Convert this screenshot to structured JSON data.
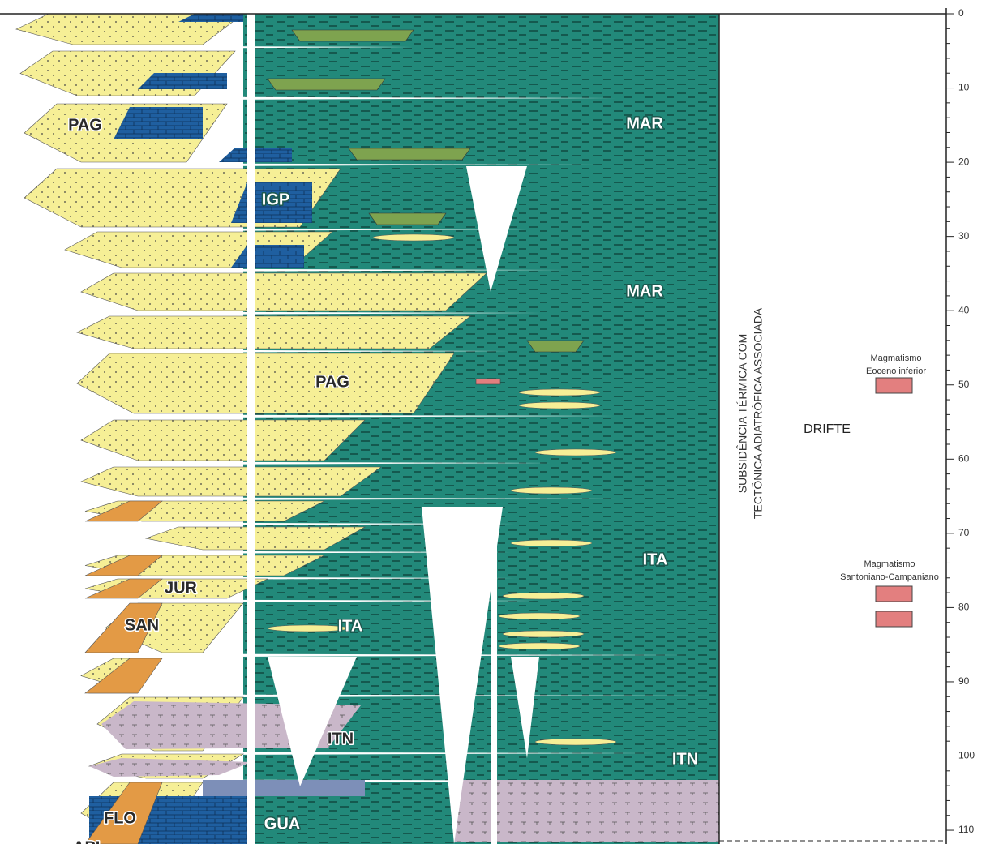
{
  "units": [
    {
      "label": "PAG"
    },
    {
      "label": "MAR"
    },
    {
      "label": "IGP"
    },
    {
      "label": "MAR"
    },
    {
      "label": "PAG"
    },
    {
      "label": "ITA"
    },
    {
      "label": "JUR"
    },
    {
      "label": "SAN"
    },
    {
      "label": "ITA"
    },
    {
      "label": "ITN"
    },
    {
      "label": "ITN"
    },
    {
      "label": "FLO"
    },
    {
      "label": "GUA"
    },
    {
      "label": "APL"
    }
  ],
  "tectonics": {
    "line1": "SUBSIDÊNCIA TÉRMICA COM",
    "line2": "TECTÔNICA ADIATRÓFICA ASSOCIADA"
  },
  "phase": "DRIFTE",
  "events": [
    {
      "title": "Magmatismo",
      "age": "Eoceno inferior"
    },
    {
      "title": "Magmatismo",
      "age": "Santoniano-Campaniano"
    }
  ],
  "axis": {
    "ticks": [
      0,
      10,
      20,
      30,
      40,
      50,
      60,
      70,
      80,
      90,
      100,
      110
    ]
  }
}
